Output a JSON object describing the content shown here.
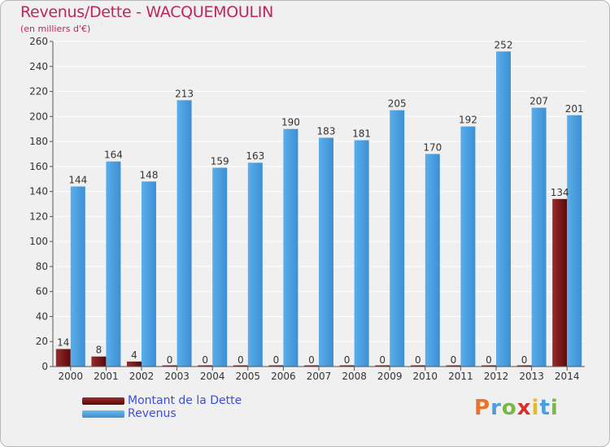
{
  "title": "Revenus/Dette - WACQUEMOULIN",
  "subtitle": "(en milliers d'€)",
  "brand": {
    "letters": [
      "P",
      "r",
      "o",
      "x",
      "i",
      "t",
      "i"
    ],
    "colors": [
      "#e8732a",
      "#4a9fdc",
      "#7ab648",
      "#d9302c",
      "#e8b82a",
      "#4a9fdc",
      "#7ab648"
    ]
  },
  "chart_data": {
    "type": "bar",
    "title": "Revenus/Dette - WACQUEMOULIN",
    "subtitle": "(en milliers d'€)",
    "categories": [
      "2000",
      "2001",
      "2002",
      "2003",
      "2004",
      "2005",
      "2006",
      "2007",
      "2008",
      "2009",
      "2010",
      "2011",
      "2012",
      "2013",
      "2014"
    ],
    "series": [
      {
        "name": "Montant de la Dette",
        "color": "#6b0f0f",
        "values": [
          14,
          8,
          4,
          0,
          0,
          0,
          0,
          0,
          0,
          0,
          0,
          0,
          0,
          0,
          134
        ]
      },
      {
        "name": "Revenus",
        "color": "#4fa3e3",
        "values": [
          144,
          164,
          148,
          213,
          159,
          163,
          190,
          183,
          181,
          205,
          170,
          192,
          252,
          207,
          201
        ]
      }
    ],
    "ylim": [
      0,
      260
    ],
    "yticks": [
      0,
      20,
      40,
      60,
      80,
      100,
      120,
      140,
      160,
      180,
      200,
      220,
      240,
      260
    ],
    "grid": true,
    "legend": "bottom-left"
  }
}
